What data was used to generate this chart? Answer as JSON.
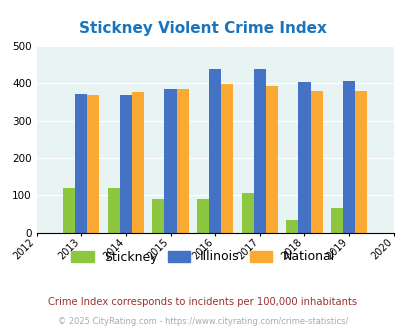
{
  "title": "Stickney Violent Crime Index",
  "years": [
    2013,
    2014,
    2015,
    2016,
    2017,
    2018,
    2019
  ],
  "stickney": [
    120,
    120,
    90,
    90,
    107,
    35,
    65
  ],
  "illinois": [
    373,
    370,
    384,
    438,
    438,
    405,
    408
  ],
  "national": [
    368,
    376,
    384,
    398,
    394,
    380,
    380
  ],
  "colors": {
    "stickney": "#8dc63f",
    "illinois": "#4472c4",
    "national": "#faa932"
  },
  "ylim": [
    0,
    500
  ],
  "yticks": [
    0,
    100,
    200,
    300,
    400,
    500
  ],
  "xlim": [
    2012,
    2020
  ],
  "xticks": [
    2012,
    2013,
    2014,
    2015,
    2016,
    2017,
    2018,
    2019,
    2020
  ],
  "bg_color": "#e8f4f4",
  "title_color": "#1a75bc",
  "note_text": "Crime Index corresponds to incidents per 100,000 inhabitants",
  "note_color": "#993333",
  "copyright_text": "© 2025 CityRating.com - https://www.cityrating.com/crime-statistics/",
  "copyright_color": "#aaaaaa",
  "bar_width": 0.27
}
